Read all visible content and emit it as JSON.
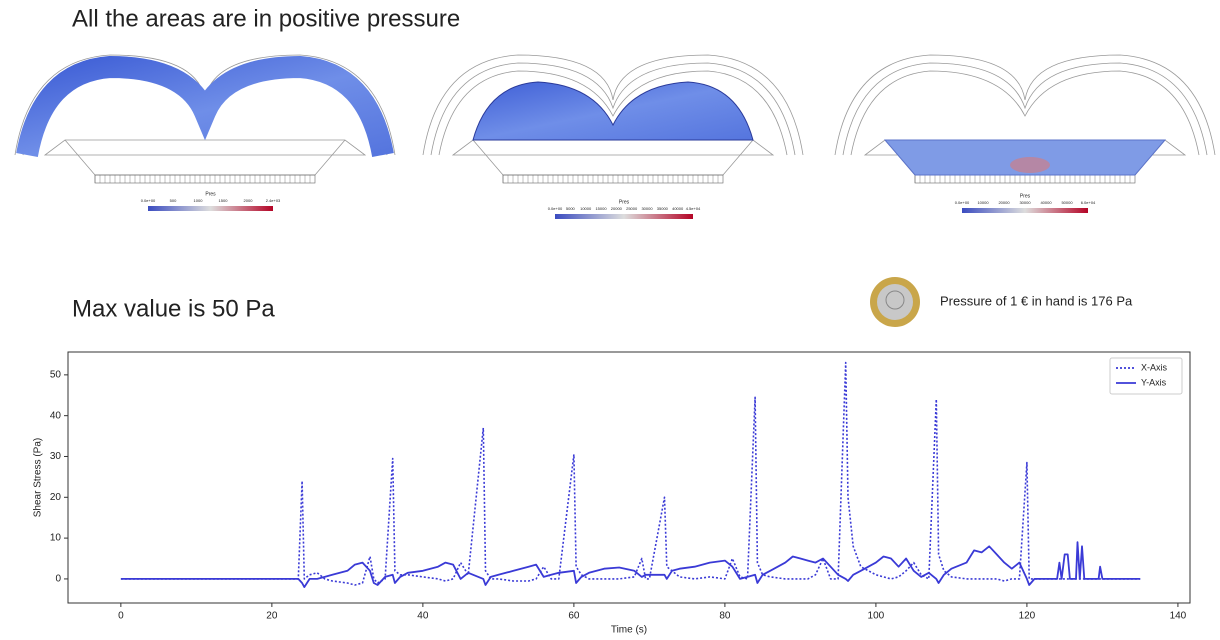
{
  "heading": "All the areas are in positive pressure",
  "subheading": "Max value is 50 Pa",
  "note": "Pressure of 1 € in hand is 176 Pa",
  "figures": [
    {
      "colorbar_title": "Pres",
      "colorbar_labels": [
        "0.0e+00",
        "500",
        "1000",
        "1500",
        "2000",
        "2.4e+03"
      ]
    },
    {
      "colorbar_title": "Pres",
      "colorbar_labels": [
        "0.0e+00",
        "5000",
        "10000",
        "15000",
        "20000",
        "25000",
        "30000",
        "35000",
        "40000",
        "4.5e+04"
      ]
    },
    {
      "colorbar_title": "Pres",
      "colorbar_labels": [
        "0.0e+00",
        "10000",
        "20000",
        "30000",
        "40000",
        "50000",
        "6.0e+04"
      ]
    }
  ],
  "chart_data": {
    "type": "line",
    "x_label": "Time (s)",
    "y_label": "Shear Stress (Pa)",
    "x": [
      0,
      23.5,
      24,
      24.3,
      25,
      26,
      27,
      28,
      30,
      31,
      32,
      33,
      33.5,
      34,
      35,
      36,
      36.3,
      37,
      38,
      40,
      42,
      43,
      44,
      45,
      46,
      48,
      48.3,
      49,
      50,
      52,
      54,
      55,
      56,
      57,
      58,
      60,
      60.3,
      61,
      62,
      64,
      66,
      68,
      69,
      69.5,
      70,
      72,
      72.3,
      73,
      74,
      76,
      78,
      80,
      81,
      82,
      83,
      84,
      84.3,
      85,
      86,
      88,
      89,
      90,
      91,
      92,
      93,
      94,
      95,
      96,
      96.3,
      97,
      98,
      100,
      101,
      102,
      103,
      104,
      105,
      106,
      107,
      108,
      108.3,
      109,
      110,
      112,
      113,
      114,
      115,
      116,
      117,
      118,
      119,
      120,
      120.3,
      121,
      124,
      124.3,
      124.6,
      125,
      125.4,
      125.7,
      126.5,
      126.7,
      127,
      127.3,
      127.6,
      129.5,
      129.7,
      130,
      135
    ],
    "series": [
      {
        "name": "X-Axis",
        "color": "#3a3ad6",
        "linestyle": "dotted",
        "values": [
          0,
          0,
          24,
          0,
          1,
          1.5,
          0,
          -0.5,
          -1,
          -1.5,
          -1,
          5.5,
          0,
          -1,
          0,
          29.5,
          2,
          1,
          1,
          0.5,
          0,
          -0.5,
          0,
          4,
          1,
          37,
          2,
          0,
          0,
          -0.5,
          -0.5,
          0,
          3,
          0,
          0,
          30.5,
          3,
          1,
          0,
          0,
          0,
          0.5,
          5,
          0,
          0,
          20,
          3,
          2,
          0.5,
          0,
          0.5,
          0,
          5,
          0.5,
          0,
          44.5,
          4,
          1,
          0.5,
          0,
          0,
          0,
          0,
          1,
          5,
          0,
          0,
          53,
          20,
          8,
          3,
          1,
          0.5,
          0,
          0.5,
          2,
          4,
          1,
          0,
          44,
          6,
          2,
          0.5,
          0,
          0,
          0,
          0,
          0,
          -0.5,
          0,
          0,
          28.5,
          0,
          0,
          0,
          0,
          0,
          0,
          0,
          0,
          0,
          0,
          0,
          0,
          0,
          0,
          0,
          0,
          0
        ]
      },
      {
        "name": "Y-Axis",
        "color": "#3a3ad6",
        "linestyle": "solid",
        "values": [
          0,
          0,
          -1,
          -2,
          0,
          0,
          0.5,
          1,
          2,
          3.5,
          4,
          2,
          -1,
          -1.5,
          0.5,
          1,
          -1,
          0.5,
          1.5,
          2,
          3,
          4,
          3.5,
          0,
          1.5,
          0,
          -1.5,
          0.5,
          1,
          2,
          3,
          3.5,
          0.5,
          1,
          1.5,
          2,
          -1,
          0.5,
          1.5,
          2.5,
          2.8,
          2,
          0.5,
          1,
          1,
          1,
          0,
          2,
          2.5,
          3,
          4,
          4.5,
          3,
          0,
          0.5,
          1,
          -1,
          1,
          2,
          4,
          5.5,
          5,
          4.5,
          4,
          5,
          3,
          1,
          0,
          -0.5,
          1,
          2,
          4,
          5.5,
          5,
          3,
          5,
          2,
          0.5,
          1.5,
          0,
          -1,
          1,
          2.5,
          4,
          7,
          6.5,
          8,
          6,
          4,
          2.5,
          4,
          0,
          -1.5,
          0,
          0,
          4,
          0,
          6,
          6,
          0,
          0,
          9,
          0,
          8,
          0,
          0,
          3,
          0,
          0
        ]
      }
    ],
    "xlim": [
      -7,
      141.6
    ],
    "ylim": [
      -5.9,
      55.6
    ],
    "xticks": [
      0,
      20,
      40,
      60,
      80,
      100,
      120,
      140
    ],
    "yticks": [
      0,
      10,
      20,
      30,
      40,
      50
    ],
    "legend": "upper right"
  }
}
